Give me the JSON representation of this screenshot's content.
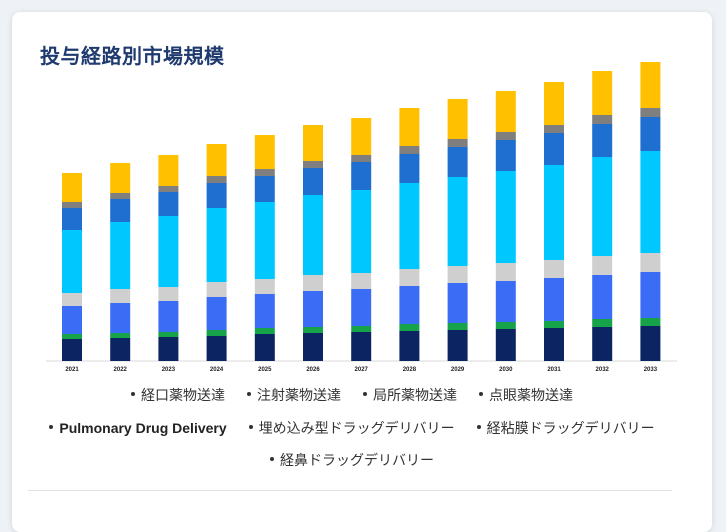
{
  "title": "投与経路別市場規模",
  "chart_data": {
    "type": "bar",
    "stacked": true,
    "categories": [
      "2021",
      "2022",
      "2023",
      "2024",
      "2025",
      "2026",
      "2027",
      "2028",
      "2029",
      "2030",
      "2031",
      "2032",
      "2033"
    ],
    "series": [
      {
        "name": "経口薬物送達",
        "color": "#0c2461",
        "values": [
          22,
          23,
          24,
          25,
          27,
          28,
          29,
          30,
          31,
          32,
          33,
          34,
          35
        ]
      },
      {
        "name": "注射薬物送達",
        "color": "#16a34a",
        "values": [
          5,
          5,
          5,
          6,
          6,
          6,
          6,
          7,
          7,
          7,
          7,
          8,
          8
        ]
      },
      {
        "name": "局所薬物送達",
        "color": "#3b6cf6",
        "values": [
          28,
          30,
          31,
          33,
          34,
          36,
          37,
          38,
          40,
          41,
          43,
          44,
          46
        ]
      },
      {
        "name": "点眼薬物送達",
        "color": "#cfcfcf",
        "values": [
          13,
          14,
          14,
          15,
          15,
          16,
          16,
          17,
          17,
          18,
          18,
          19,
          19
        ]
      },
      {
        "name": "Pulmonary Drug Delivery",
        "color": "#00c8ff",
        "values": [
          63,
          67,
          71,
          74,
          77,
          80,
          83,
          86,
          89,
          92,
          95,
          99,
          102
        ]
      },
      {
        "name": "埋め込み型ドラッグデリバリー",
        "color": "#1f6fd1",
        "values": [
          22,
          23,
          24,
          25,
          26,
          27,
          28,
          29,
          30,
          31,
          32,
          33,
          34
        ]
      },
      {
        "name": "経粘膜ドラッグデリバリー",
        "color": "#7f7f7f",
        "values": [
          6,
          6,
          6,
          7,
          7,
          7,
          7,
          8,
          8,
          8,
          8,
          9,
          9
        ]
      },
      {
        "name": "経鼻ドラッグデリバリー",
        "color": "#ffc000",
        "values": [
          29,
          30,
          31,
          32,
          34,
          36,
          37,
          38,
          40,
          41,
          43,
          44,
          46
        ]
      }
    ],
    "ylim": [
      0,
      300
    ],
    "grid": false,
    "legend_position": "bottom"
  },
  "legend": {
    "items": [
      {
        "label": "経口薬物送達"
      },
      {
        "label": "注射薬物送達"
      },
      {
        "label": "局所薬物送達"
      },
      {
        "label": "点眼薬物送達"
      },
      {
        "label": "Pulmonary Drug Delivery",
        "latin": true
      },
      {
        "label": "埋め込み型ドラッグデリバリー"
      },
      {
        "label": "経粘膜ドラッグデリバリー"
      },
      {
        "label": "経鼻ドラッグデリバリー"
      }
    ]
  }
}
